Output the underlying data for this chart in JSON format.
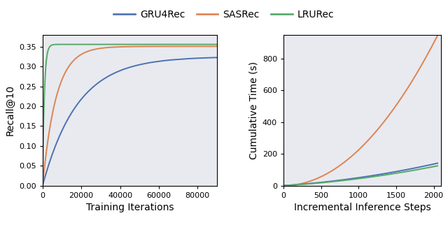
{
  "colors": {
    "GRU4Rec": "#4c72b0",
    "SASRec": "#dd8452",
    "LRURec": "#55a868"
  },
  "legend_labels": [
    "GRU4Rec",
    "SASRec",
    "LRURec"
  ],
  "left_plot": {
    "xlabel": "Training Iterations",
    "ylabel": "Recall@10",
    "xlim": [
      0,
      90000
    ],
    "ylim": [
      0.0,
      0.38
    ],
    "yticks": [
      0.0,
      0.05,
      0.1,
      0.15,
      0.2,
      0.25,
      0.3,
      0.35
    ],
    "xticks": [
      0,
      20000,
      40000,
      60000,
      80000
    ],
    "xticklabels": [
      "0",
      "20000",
      "40000",
      "60000",
      "80000"
    ]
  },
  "right_plot": {
    "xlabel": "Incremental Inference Steps",
    "ylabel": "Cumulative Time (s)",
    "xlim": [
      0,
      2100
    ],
    "ylim": [
      0,
      950
    ],
    "yticks": [
      0,
      200,
      400,
      600,
      800
    ],
    "xticks": [
      0,
      500,
      1000,
      1500,
      2000
    ],
    "xticklabels": [
      "0",
      "500",
      "1000",
      "1500",
      "2000"
    ]
  },
  "background_color": "#e8eaf0",
  "figure_background": "#ffffff",
  "linewidth": 1.4
}
